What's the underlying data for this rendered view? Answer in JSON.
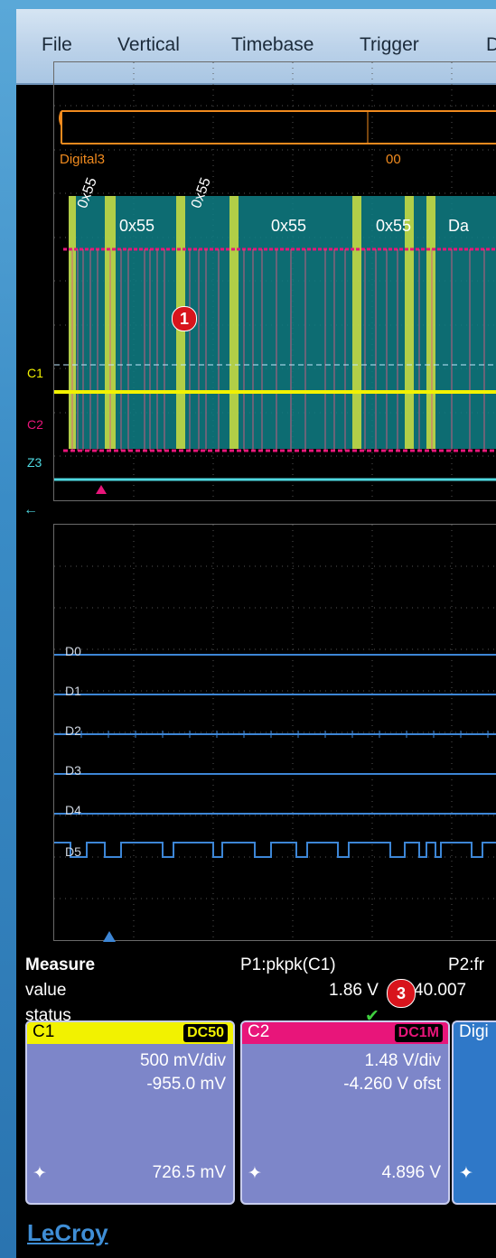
{
  "menu": [
    "File",
    "Vertical",
    "Timebase",
    "Trigger",
    "D"
  ],
  "decode": {
    "bus_label": "Digital3",
    "bus_value": "00",
    "rotated_labels": [
      "0x55",
      "0x55"
    ],
    "packets": [
      "0x55",
      "0x55",
      "0x55",
      "Da"
    ],
    "marker_1": "1"
  },
  "channels_top": {
    "c1": "C1",
    "c2": "C2",
    "z3": "Z3"
  },
  "digital_lines": [
    "D0",
    "D1",
    "D2",
    "D3",
    "D4",
    "D5"
  ],
  "measure": {
    "title": "Measure",
    "p1_label": "P1:pkpk(C1)",
    "p2_label": "P2:fr",
    "row_value": "value",
    "row_status": "status",
    "p1_value": "1.86 V",
    "p2_value": "40.007",
    "marker_3": "3",
    "status_icon": "check-icon"
  },
  "cards": {
    "c1": {
      "name": "C1",
      "coupling": "DC50",
      "vdiv": "500 mV/div",
      "offset": "-955.0 mV",
      "level": "726.5 mV"
    },
    "c2": {
      "name": "C2",
      "coupling": "DC1M",
      "vdiv": "1.48 V/div",
      "offset": "-4.260 V ofst",
      "level": "4.896 V"
    },
    "digital": {
      "name": "Digi"
    }
  },
  "brand": "LeCroy",
  "colors": {
    "c1": "#f2f200",
    "c2": "#e8157a",
    "z3": "#4fd8e0",
    "digital": "#3d86d6",
    "decode": "#f08a1e"
  }
}
